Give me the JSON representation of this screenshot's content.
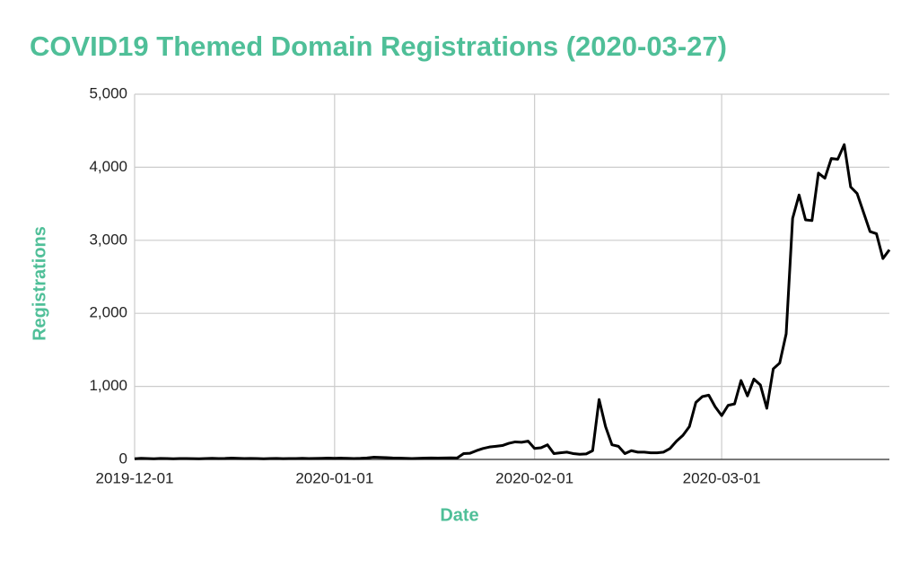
{
  "chart_data": {
    "type": "line",
    "title": "COVID19 Themed Domain Registrations (2020-03-27)",
    "x_label": "Date",
    "y_label": "Registrations",
    "grid": true,
    "color": "#000000",
    "x": [
      "2019-12-01",
      "2019-12-02",
      "2019-12-03",
      "2019-12-04",
      "2019-12-05",
      "2019-12-06",
      "2019-12-07",
      "2019-12-08",
      "2019-12-09",
      "2019-12-10",
      "2019-12-11",
      "2019-12-12",
      "2019-12-13",
      "2019-12-14",
      "2019-12-15",
      "2019-12-16",
      "2019-12-17",
      "2019-12-18",
      "2019-12-19",
      "2019-12-20",
      "2019-12-21",
      "2019-12-22",
      "2019-12-23",
      "2019-12-24",
      "2019-12-25",
      "2019-12-26",
      "2019-12-27",
      "2019-12-28",
      "2019-12-29",
      "2019-12-30",
      "2019-12-31",
      "2020-01-01",
      "2020-01-02",
      "2020-01-03",
      "2020-01-04",
      "2020-01-05",
      "2020-01-06",
      "2020-01-07",
      "2020-01-08",
      "2020-01-09",
      "2020-01-10",
      "2020-01-11",
      "2020-01-12",
      "2020-01-13",
      "2020-01-14",
      "2020-01-15",
      "2020-01-16",
      "2020-01-17",
      "2020-01-18",
      "2020-01-19",
      "2020-01-20",
      "2020-01-21",
      "2020-01-22",
      "2020-01-23",
      "2020-01-24",
      "2020-01-25",
      "2020-01-26",
      "2020-01-27",
      "2020-01-28",
      "2020-01-29",
      "2020-01-30",
      "2020-01-31",
      "2020-02-01",
      "2020-02-02",
      "2020-02-03",
      "2020-02-04",
      "2020-02-05",
      "2020-02-06",
      "2020-02-07",
      "2020-02-08",
      "2020-02-09",
      "2020-02-10",
      "2020-02-11",
      "2020-02-12",
      "2020-02-13",
      "2020-02-14",
      "2020-02-15",
      "2020-02-16",
      "2020-02-17",
      "2020-02-18",
      "2020-02-19",
      "2020-02-20",
      "2020-02-21",
      "2020-02-22",
      "2020-02-23",
      "2020-02-24",
      "2020-02-25",
      "2020-02-26",
      "2020-02-27",
      "2020-02-28",
      "2020-02-29",
      "2020-03-01",
      "2020-03-02",
      "2020-03-03",
      "2020-03-04",
      "2020-03-05",
      "2020-03-06",
      "2020-03-07",
      "2020-03-08",
      "2020-03-09",
      "2020-03-10",
      "2020-03-11",
      "2020-03-12",
      "2020-03-13",
      "2020-03-14",
      "2020-03-15",
      "2020-03-16",
      "2020-03-17",
      "2020-03-18",
      "2020-03-19",
      "2020-03-20",
      "2020-03-21",
      "2020-03-22",
      "2020-03-23",
      "2020-03-24",
      "2020-03-25",
      "2020-03-26",
      "2020-03-27"
    ],
    "values": [
      10,
      15,
      12,
      10,
      14,
      12,
      10,
      12,
      13,
      11,
      10,
      12,
      15,
      12,
      14,
      18,
      15,
      12,
      14,
      12,
      10,
      12,
      14,
      11,
      12,
      13,
      15,
      12,
      14,
      16,
      18,
      15,
      18,
      15,
      12,
      15,
      20,
      30,
      28,
      25,
      20,
      18,
      15,
      12,
      15,
      18,
      20,
      18,
      20,
      22,
      20,
      80,
      85,
      120,
      150,
      170,
      180,
      190,
      220,
      240,
      235,
      250,
      150,
      160,
      200,
      80,
      90,
      100,
      80,
      70,
      75,
      120,
      820,
      450,
      200,
      180,
      80,
      120,
      100,
      100,
      90,
      90,
      100,
      150,
      250,
      330,
      450,
      780,
      860,
      880,
      720,
      600,
      740,
      760,
      1080,
      870,
      1100,
      1020,
      700,
      1240,
      1320,
      1720,
      3300,
      3620,
      3280,
      3270,
      3920,
      3850,
      4120,
      4110,
      4310,
      3730,
      3640,
      3380,
      3120,
      3090,
      2750,
      2870
    ],
    "xlim": [
      "2019-12-01",
      "2020-03-27"
    ],
    "xticks": [
      "2019-12-01",
      "2020-01-01",
      "2020-02-01",
      "2020-03-01"
    ],
    "ylim": [
      0,
      5000
    ],
    "yticks": [
      0,
      {
        "value": 1000,
        "label": "1,000"
      },
      {
        "value": 2000,
        "label": "2,000"
      },
      {
        "value": 3000,
        "label": "3,000"
      },
      {
        "value": 4000,
        "label": "4,000"
      },
      {
        "value": 5000,
        "label": "5,000"
      }
    ]
  }
}
